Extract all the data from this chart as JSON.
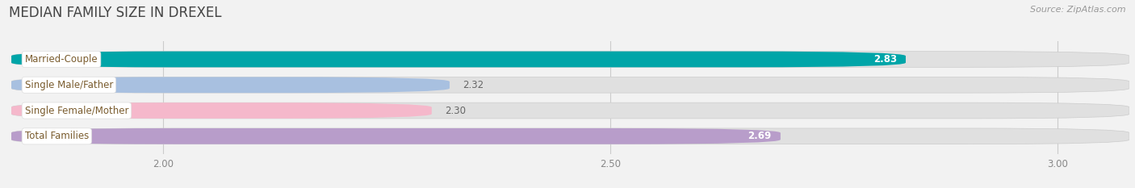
{
  "title": "MEDIAN FAMILY SIZE IN DREXEL",
  "source": "Source: ZipAtlas.com",
  "categories": [
    "Married-Couple",
    "Single Male/Father",
    "Single Female/Mother",
    "Total Families"
  ],
  "values": [
    2.83,
    2.32,
    2.3,
    2.69
  ],
  "bar_colors": [
    "#00a5a8",
    "#a8c0e0",
    "#f5b8cb",
    "#b89dca"
  ],
  "value_inside": [
    true,
    false,
    false,
    true
  ],
  "value_colors_inside": [
    "#ffffff",
    "#666666",
    "#666666",
    "#ffffff"
  ],
  "xlim_min": 1.83,
  "xlim_max": 3.08,
  "xticks": [
    2.0,
    2.5,
    3.0
  ],
  "xtick_labels": [
    "2.00",
    "2.50",
    "3.00"
  ],
  "bar_height": 0.62,
  "background_color": "#f2f2f2",
  "bar_background_color": "#e0e0e0",
  "label_bg_color": "#ffffff",
  "label_text_color": "#7a5c2e",
  "title_fontsize": 12,
  "source_fontsize": 8,
  "label_fontsize": 8.5,
  "value_fontsize": 8.5,
  "tick_fontsize": 8.5
}
